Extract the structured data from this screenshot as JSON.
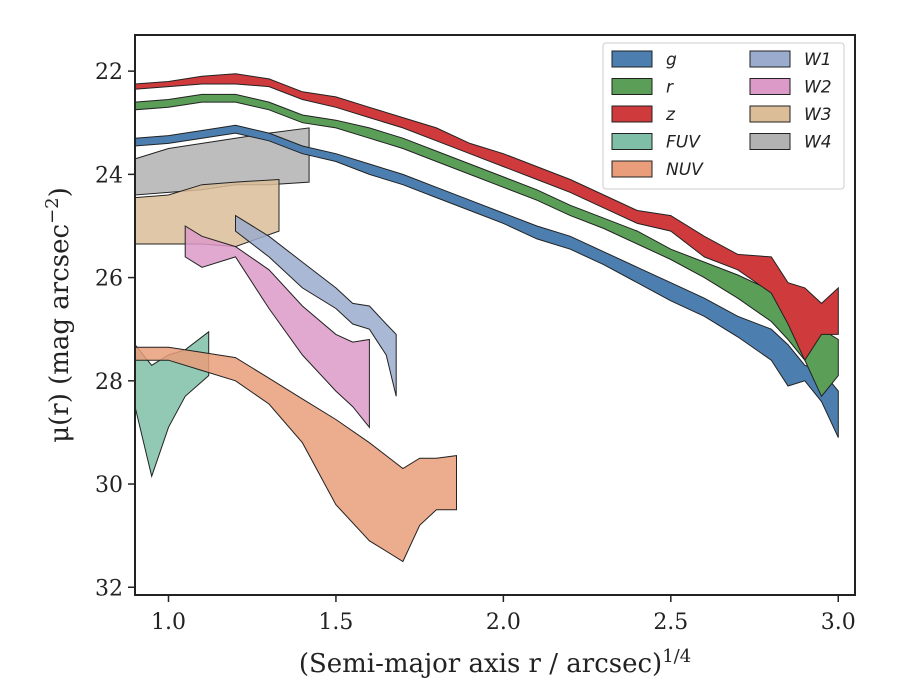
{
  "chart_data": {
    "type": "area",
    "xlabel": "(Semi-major axis r / arcsec)^{1/4}",
    "ylabel": "μ(r) (mag arcsec^{−2})",
    "xlim": [
      0.9,
      3.05
    ],
    "ylim": [
      32.15,
      21.3
    ],
    "y_inverted": true,
    "xticks": [
      "1.0",
      "1.5",
      "2.0",
      "2.5",
      "3.0"
    ],
    "yticks": [
      "22",
      "24",
      "26",
      "28",
      "30",
      "32"
    ],
    "legend_position": "top-right",
    "legend_columns": 2,
    "grid": false,
    "series": [
      {
        "name": "g",
        "color": "#4c7fb0",
        "x": [
          0.9,
          1.0,
          1.1,
          1.2,
          1.3,
          1.4,
          1.5,
          1.6,
          1.7,
          1.8,
          1.9,
          2.0,
          2.1,
          2.2,
          2.3,
          2.4,
          2.5,
          2.6,
          2.7,
          2.8,
          2.85,
          2.9,
          2.95,
          3.0
        ],
        "lower": [
          23.3,
          23.25,
          23.15,
          23.05,
          23.2,
          23.45,
          23.6,
          23.8,
          24.0,
          24.25,
          24.5,
          24.75,
          25.0,
          25.2,
          25.5,
          25.8,
          26.1,
          26.4,
          26.75,
          27.0,
          27.3,
          27.7,
          27.8,
          28.2
        ],
        "upper": [
          23.45,
          23.4,
          23.3,
          23.2,
          23.35,
          23.6,
          23.75,
          24.0,
          24.2,
          24.45,
          24.7,
          24.95,
          25.25,
          25.45,
          25.75,
          26.1,
          26.45,
          26.75,
          27.15,
          27.6,
          28.1,
          28.0,
          28.4,
          29.1
        ]
      },
      {
        "name": "r",
        "color": "#5a9e58",
        "x": [
          0.9,
          1.0,
          1.1,
          1.2,
          1.3,
          1.4,
          1.5,
          1.6,
          1.7,
          1.8,
          1.9,
          2.0,
          2.1,
          2.2,
          2.3,
          2.4,
          2.5,
          2.6,
          2.7,
          2.8,
          2.85,
          2.9,
          2.95,
          3.0
        ],
        "lower": [
          22.6,
          22.55,
          22.45,
          22.45,
          22.6,
          22.85,
          22.95,
          23.1,
          23.3,
          23.55,
          23.8,
          24.05,
          24.3,
          24.6,
          24.85,
          25.1,
          25.45,
          25.7,
          25.95,
          26.25,
          26.45,
          26.7,
          27.0,
          27.2
        ],
        "upper": [
          22.75,
          22.7,
          22.6,
          22.6,
          22.75,
          23.0,
          23.1,
          23.3,
          23.5,
          23.75,
          24.0,
          24.25,
          24.5,
          24.8,
          25.05,
          25.35,
          25.65,
          26.0,
          26.4,
          26.85,
          27.2,
          27.6,
          28.3,
          27.9
        ]
      },
      {
        "name": "z",
        "color": "#cf3b3d",
        "x": [
          0.9,
          1.0,
          1.1,
          1.2,
          1.3,
          1.4,
          1.5,
          1.6,
          1.7,
          1.8,
          1.9,
          2.0,
          2.1,
          2.2,
          2.3,
          2.4,
          2.5,
          2.6,
          2.7,
          2.8,
          2.85,
          2.9,
          2.95,
          3.0
        ],
        "lower": [
          22.25,
          22.2,
          22.1,
          22.05,
          22.15,
          22.4,
          22.5,
          22.7,
          22.9,
          23.1,
          23.4,
          23.6,
          23.85,
          24.1,
          24.4,
          24.7,
          24.8,
          25.2,
          25.55,
          25.6,
          26.1,
          26.2,
          26.5,
          26.2
        ],
        "upper": [
          22.35,
          22.3,
          22.25,
          22.25,
          22.3,
          22.55,
          22.7,
          22.9,
          23.1,
          23.35,
          23.6,
          23.85,
          24.1,
          24.35,
          24.65,
          24.95,
          25.1,
          25.6,
          25.85,
          26.3,
          26.9,
          27.6,
          27.1,
          27.1
        ]
      },
      {
        "name": "FUV",
        "color": "#7fbfa8",
        "x": [
          0.9,
          0.95,
          1.0,
          1.05,
          1.12
        ],
        "lower": [
          27.3,
          27.7,
          27.5,
          27.4,
          27.05
        ],
        "upper": [
          28.5,
          29.85,
          28.9,
          28.3,
          27.9
        ]
      },
      {
        "name": "NUV",
        "color": "#e99d7a",
        "x": [
          0.9,
          1.0,
          1.1,
          1.2,
          1.3,
          1.4,
          1.5,
          1.6,
          1.7,
          1.75,
          1.8,
          1.86
        ],
        "lower": [
          27.35,
          27.35,
          27.45,
          27.55,
          27.95,
          28.35,
          28.75,
          29.2,
          29.7,
          29.5,
          29.5,
          29.45
        ],
        "upper": [
          27.6,
          27.6,
          27.8,
          28.0,
          28.45,
          29.2,
          30.4,
          31.1,
          31.5,
          30.8,
          30.5,
          30.5
        ]
      },
      {
        "name": "W1",
        "color": "#9aabcd",
        "x": [
          1.2,
          1.3,
          1.4,
          1.5,
          1.55,
          1.6,
          1.65,
          1.68
        ],
        "lower": [
          24.8,
          25.2,
          25.7,
          26.2,
          26.5,
          26.55,
          26.9,
          27.1
        ],
        "upper": [
          25.1,
          25.6,
          26.2,
          26.6,
          26.9,
          27.0,
          27.5,
          28.3
        ]
      },
      {
        "name": "W2",
        "color": "#dc9ac8",
        "x": [
          1.05,
          1.1,
          1.2,
          1.3,
          1.4,
          1.5,
          1.55,
          1.6
        ],
        "lower": [
          25.0,
          25.2,
          25.4,
          25.85,
          26.55,
          27.1,
          27.25,
          27.2
        ],
        "upper": [
          25.6,
          25.8,
          25.6,
          26.6,
          27.5,
          28.2,
          28.5,
          28.9
        ]
      },
      {
        "name": "W3",
        "color": "#dbbd98",
        "x": [
          0.9,
          1.0,
          1.1,
          1.2,
          1.33
        ],
        "lower": [
          24.45,
          24.4,
          24.2,
          24.15,
          24.1
        ],
        "upper": [
          25.35,
          25.35,
          25.35,
          25.4,
          25.1
        ]
      },
      {
        "name": "W4",
        "color": "#b2b2b2",
        "x": [
          0.9,
          1.0,
          1.1,
          1.2,
          1.3,
          1.42
        ],
        "lower": [
          23.7,
          23.5,
          23.4,
          23.3,
          23.2,
          23.1
        ],
        "upper": [
          24.4,
          24.35,
          24.3,
          24.2,
          24.2,
          24.15
        ]
      }
    ]
  }
}
